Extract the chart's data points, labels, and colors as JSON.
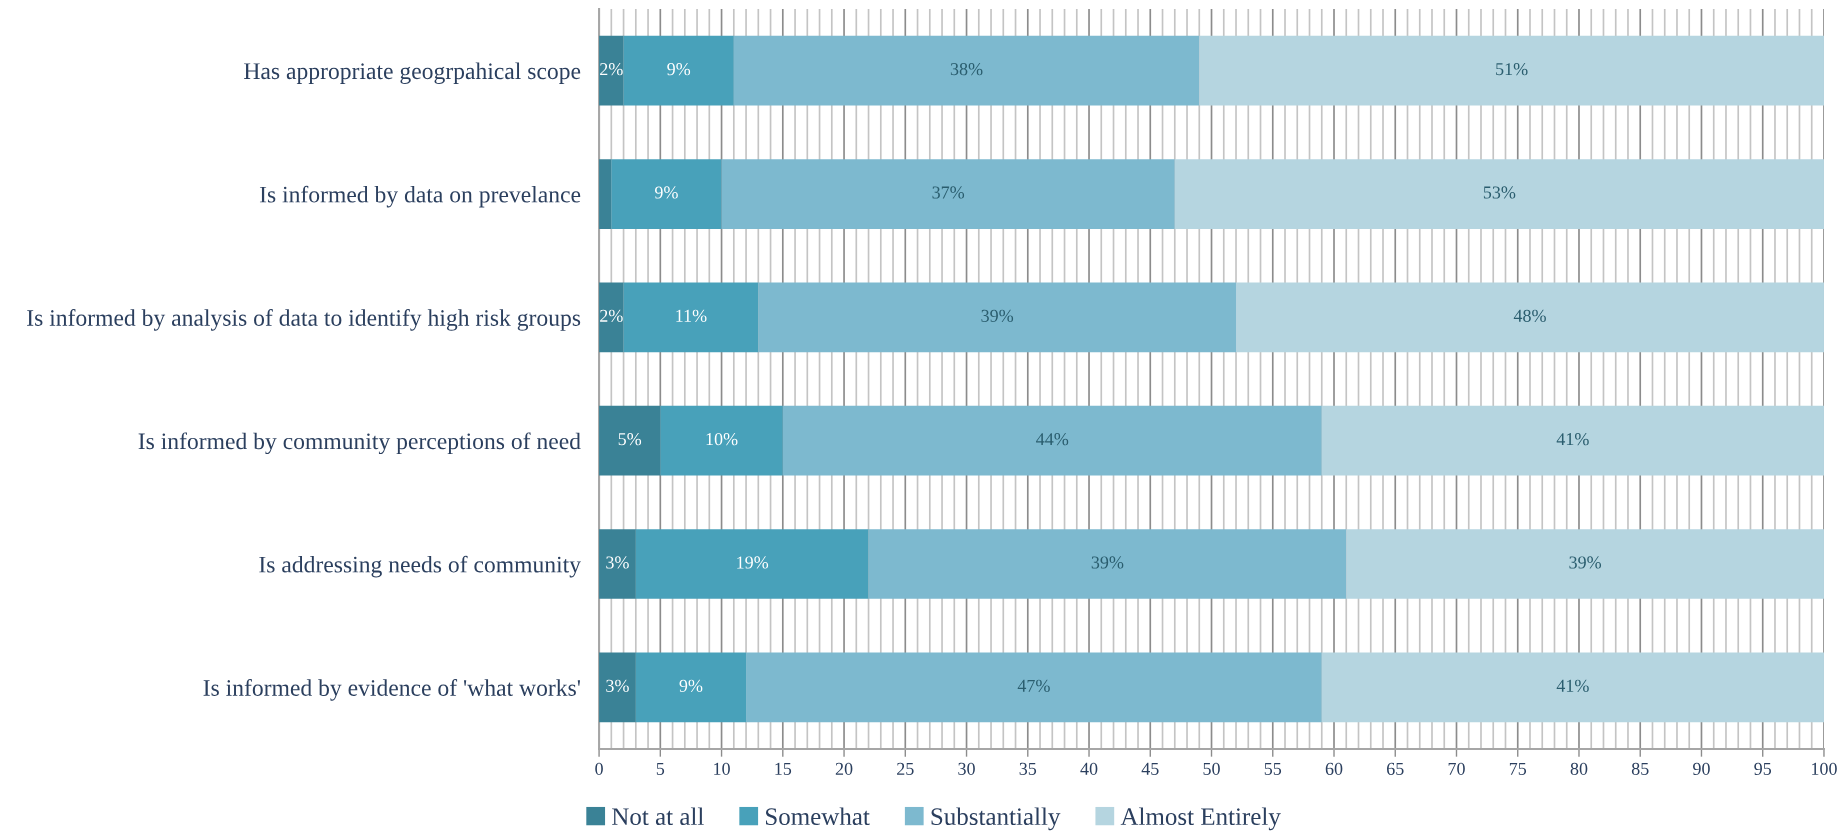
{
  "chart_data": {
    "type": "bar",
    "orientation": "horizontal",
    "stacked": true,
    "categories": [
      "Has appropriate geogrpahical scope",
      "Is informed by data on prevelance",
      "Is informed by analysis of data to identify high risk groups",
      "Is informed by community perceptions of need",
      "Is addressing needs of community",
      "Is informed by evidence of 'what works'"
    ],
    "series": [
      {
        "name": "Not at all",
        "color": "#3a8296",
        "values": [
          2,
          1,
          2,
          5,
          3,
          3
        ],
        "value_labels": [
          "2%",
          null,
          "2%",
          "5%",
          "3%",
          "3%"
        ]
      },
      {
        "name": "Somewhat",
        "color": "#48a1ba",
        "values": [
          9,
          9,
          11,
          10,
          19,
          9
        ],
        "value_labels": [
          "9%",
          "9%",
          "11%",
          "10%",
          "19%",
          "9%"
        ]
      },
      {
        "name": "Substantially",
        "color": "#7db9cf",
        "values": [
          38,
          37,
          39,
          44,
          39,
          47
        ],
        "value_labels": [
          "38%",
          "37%",
          "39%",
          "44%",
          "39%",
          "47%"
        ]
      },
      {
        "name": "Almost Entirely",
        "color": "#b5d5e0",
        "values": [
          51,
          53,
          48,
          41,
          39,
          41
        ],
        "value_labels": [
          "51%",
          "53%",
          "48%",
          "41%",
          "39%",
          "41%"
        ]
      }
    ],
    "xlim": [
      0,
      100
    ],
    "xticks": [
      0,
      {
        "value": 1,
        "label": null
      },
      {
        "value": 2,
        "label": null
      },
      {
        "value": 3,
        "label": null
      },
      {
        "value": 4,
        "label": null
      },
      5,
      {
        "value": 6,
        "label": null
      },
      {
        "value": 7,
        "label": null
      },
      {
        "value": 8,
        "label": null
      },
      {
        "value": 9,
        "label": null
      },
      10,
      {
        "value": 11,
        "label": null
      },
      {
        "value": 12,
        "label": null
      },
      {
        "value": 13,
        "label": null
      },
      {
        "value": 14,
        "label": null
      },
      15,
      {
        "value": 16,
        "label": null
      },
      {
        "value": 17,
        "label": null
      },
      {
        "value": 18,
        "label": null
      },
      {
        "value": 19,
        "label": null
      },
      20,
      {
        "value": 21,
        "label": null
      },
      {
        "value": 22,
        "label": null
      },
      {
        "value": 23,
        "label": null
      },
      {
        "value": 24,
        "label": null
      },
      25,
      {
        "value": 26,
        "label": null
      },
      {
        "value": 27,
        "label": null
      },
      {
        "value": 28,
        "label": null
      },
      {
        "value": 29,
        "label": null
      },
      30,
      {
        "value": 31,
        "label": null
      },
      {
        "value": 32,
        "label": null
      },
      {
        "value": 33,
        "label": null
      },
      {
        "value": 34,
        "label": null
      },
      35,
      {
        "value": 36,
        "label": null
      },
      {
        "value": 37,
        "label": null
      },
      {
        "value": 38,
        "label": null
      },
      {
        "value": 39,
        "label": null
      },
      40,
      {
        "value": 41,
        "label": null
      },
      {
        "value": 42,
        "label": null
      },
      {
        "value": 43,
        "label": null
      },
      {
        "value": 44,
        "label": null
      },
      45,
      {
        "value": 46,
        "label": null
      },
      {
        "value": 47,
        "label": null
      },
      {
        "value": 48,
        "label": null
      },
      {
        "value": 49,
        "label": null
      },
      50,
      {
        "value": 51,
        "label": null
      },
      {
        "value": 52,
        "label": null
      },
      {
        "value": 53,
        "label": null
      },
      {
        "value": 54,
        "label": null
      },
      55,
      {
        "value": 56,
        "label": null
      },
      {
        "value": 57,
        "label": null
      },
      {
        "value": 58,
        "label": null
      },
      {
        "value": 59,
        "label": null
      },
      60,
      {
        "value": 61,
        "label": null
      },
      {
        "value": 62,
        "label": null
      },
      {
        "value": 63,
        "label": null
      },
      {
        "value": 64,
        "label": null
      },
      65,
      {
        "value": 66,
        "label": null
      },
      {
        "value": 67,
        "label": null
      },
      {
        "value": 68,
        "label": null
      },
      {
        "value": 69,
        "label": null
      },
      70,
      {
        "value": 71,
        "label": null
      },
      {
        "value": 72,
        "label": null
      },
      {
        "value": 73,
        "label": null
      },
      {
        "value": 74,
        "label": null
      },
      75,
      {
        "value": 76,
        "label": null
      },
      {
        "value": 77,
        "label": null
      },
      {
        "value": 78,
        "label": null
      },
      {
        "value": 79,
        "label": null
      },
      80,
      {
        "value": 81,
        "label": null
      },
      {
        "value": 82,
        "label": null
      },
      {
        "value": 83,
        "label": null
      },
      {
        "value": 84,
        "label": null
      },
      85,
      {
        "value": 86,
        "label": null
      },
      {
        "value": 87,
        "label": null
      },
      {
        "value": 88,
        "label": null
      },
      {
        "value": 89,
        "label": null
      },
      90,
      {
        "value": 91,
        "label": null
      },
      {
        "value": 92,
        "label": null
      },
      {
        "value": 93,
        "label": null
      },
      {
        "value": 94,
        "label": null
      },
      95,
      {
        "value": 96,
        "label": null
      },
      {
        "value": 97,
        "label": null
      },
      {
        "value": 98,
        "label": null
      },
      {
        "value": 99,
        "label": null
      },
      100
    ],
    "grid": "x",
    "legend": "bottom"
  }
}
